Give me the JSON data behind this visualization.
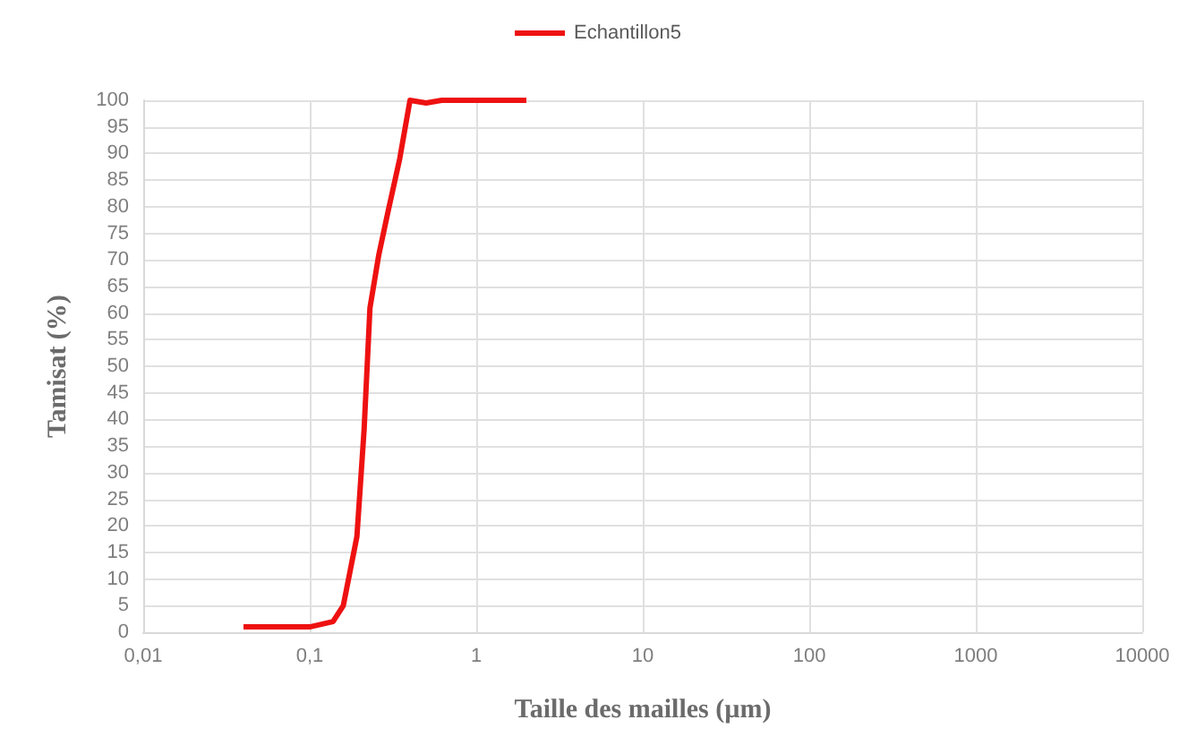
{
  "chart_data": {
    "type": "line",
    "xlabel": "Taille des mailles (µm)",
    "ylabel": "Tamisat (%)",
    "log": "x",
    "xlim": [
      0.01,
      10000
    ],
    "xticks": [
      {
        "value": 0.01,
        "label": "0,01"
      },
      {
        "value": 0.1,
        "label": "0,1"
      },
      1,
      10,
      100,
      1000,
      10000
    ],
    "ylim": [
      0,
      100
    ],
    "yticks": [
      0,
      5,
      10,
      15,
      20,
      25,
      30,
      35,
      40,
      45,
      50,
      55,
      60,
      65,
      70,
      75,
      80,
      85,
      90,
      95,
      100
    ],
    "grid": true,
    "legend": "top",
    "marker": "none",
    "line_style": "solid",
    "series": [
      {
        "name": "Echantillon5",
        "color": "#ee1111",
        "x": [
          0.04,
          0.1,
          0.138,
          0.159,
          0.192,
          0.212,
          0.23,
          0.26,
          0.295,
          0.347,
          0.4,
          0.5,
          0.62,
          2
        ],
        "values": [
          1,
          1,
          2,
          5,
          18,
          38,
          61,
          71,
          79,
          89,
          100,
          99.5,
          100,
          100
        ]
      }
    ]
  }
}
